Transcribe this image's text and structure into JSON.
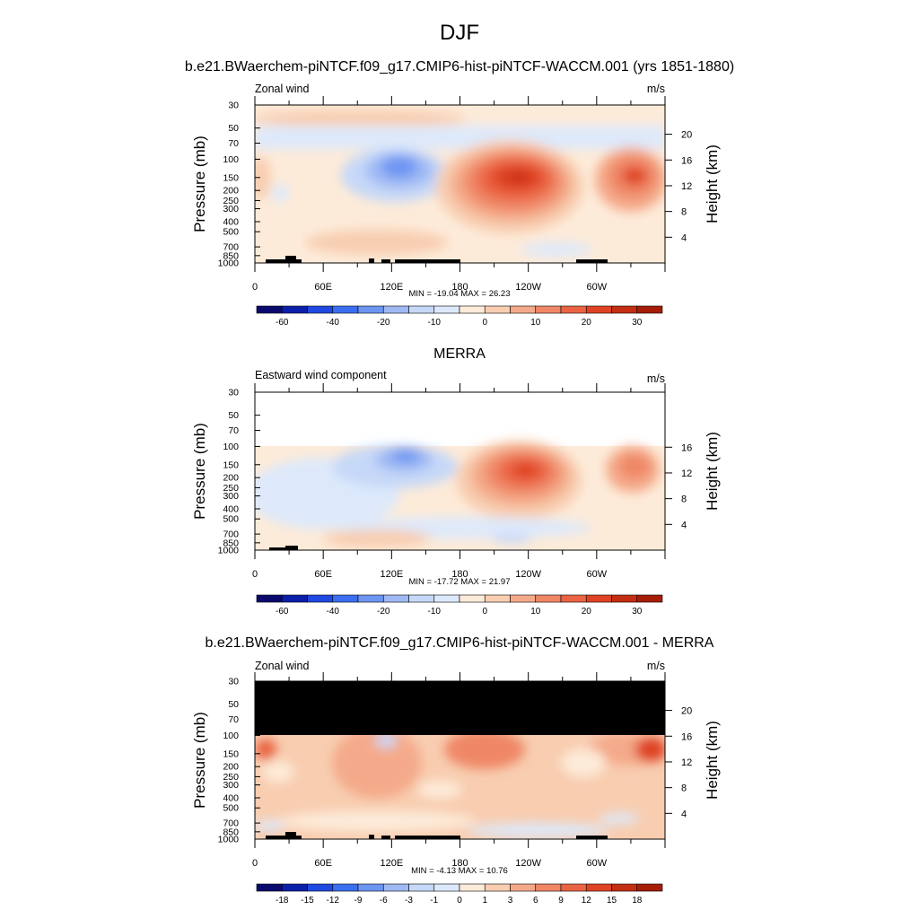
{
  "figure": {
    "title": "DJF"
  },
  "colors": {
    "blues": [
      "#0a0a6e",
      "#0b1fa8",
      "#1f49e0",
      "#3b6ef0",
      "#6d95f2",
      "#9fb9f4",
      "#c6d8f8",
      "#dde9fb"
    ],
    "reds": [
      "#fdebd9",
      "#f8cdb0",
      "#f4aa8a",
      "#ef8766",
      "#ea6443",
      "#df4323",
      "#c42e12",
      "#a61d08",
      "#7a0b03"
    ],
    "mask": "#000000"
  },
  "chart_data": [
    {
      "type": "heatmap",
      "panel_title": "b.e21.BWaerchem-piNTCF.f09_g17.CMIP6-hist-piNTCF-WACCM.001 (yrs 1851-1880)",
      "left_label": "Zonal wind",
      "right_label": "m/s",
      "ylabel": "Pressure (mb)",
      "ylabel_right": "Height (km)",
      "yticks": [
        "30",
        "50",
        "70",
        "100",
        "150",
        "200",
        "250",
        "300",
        "400",
        "500",
        "700",
        "850",
        "1000"
      ],
      "ylim": [
        1000,
        30
      ],
      "yticks_right": [
        "20",
        "16",
        "12",
        "8",
        "4"
      ],
      "xticks": [
        "0",
        "60E",
        "120E",
        "180",
        "120W",
        "60W"
      ],
      "xlim": [
        0,
        360
      ],
      "stats": "MIN = -19.04  MAX =  26.23",
      "min": -19.04,
      "max": 26.23,
      "colorbar_labels": [
        "-60",
        "-40",
        "-20",
        "-10",
        "0",
        "10",
        "20",
        "30"
      ],
      "has_top_mask": false
    },
    {
      "type": "heatmap",
      "panel_title": "MERRA",
      "left_label": "Eastward wind component",
      "right_label": "m/s",
      "ylabel": "Pressure (mb)",
      "ylabel_right": "Height (km)",
      "yticks": [
        "30",
        "50",
        "70",
        "100",
        "150",
        "200",
        "250",
        "300",
        "400",
        "500",
        "700",
        "850",
        "1000"
      ],
      "ylim": [
        1000,
        30
      ],
      "yticks_right": [
        "16",
        "12",
        "8",
        "4"
      ],
      "xticks": [
        "0",
        "60E",
        "120E",
        "180",
        "120W",
        "60W"
      ],
      "xlim": [
        0,
        360
      ],
      "stats": "MIN = -17.72  MAX =  21.97",
      "min": -17.72,
      "max": 21.97,
      "colorbar_labels": [
        "-60",
        "-40",
        "-20",
        "-10",
        "0",
        "10",
        "20",
        "30"
      ],
      "data_top_pressure": 100,
      "has_top_mask": false
    },
    {
      "type": "heatmap",
      "panel_title": "b.e21.BWaerchem-piNTCF.f09_g17.CMIP6-hist-piNTCF-WACCM.001 - MERRA",
      "left_label": "Zonal wind",
      "right_label": "m/s",
      "ylabel": "Pressure (mb)",
      "ylabel_right": "Height (km)",
      "yticks": [
        "30",
        "50",
        "70",
        "100",
        "150",
        "200",
        "250",
        "300",
        "400",
        "500",
        "700",
        "850",
        "1000"
      ],
      "ylim": [
        1000,
        30
      ],
      "yticks_right": [
        "20",
        "16",
        "12",
        "8",
        "4"
      ],
      "xticks": [
        "0",
        "60E",
        "120E",
        "180",
        "120W",
        "60W"
      ],
      "xlim": [
        0,
        360
      ],
      "stats": "MIN = -4.13  MAX =  10.76",
      "min": -4.13,
      "max": 10.76,
      "colorbar_labels": [
        "-18",
        "-15",
        "-12",
        "-9",
        "-6",
        "-3",
        "-1",
        "0",
        "1",
        "3",
        "6",
        "9",
        "12",
        "15",
        "18"
      ],
      "data_top_pressure": 100,
      "has_top_mask": true
    }
  ]
}
